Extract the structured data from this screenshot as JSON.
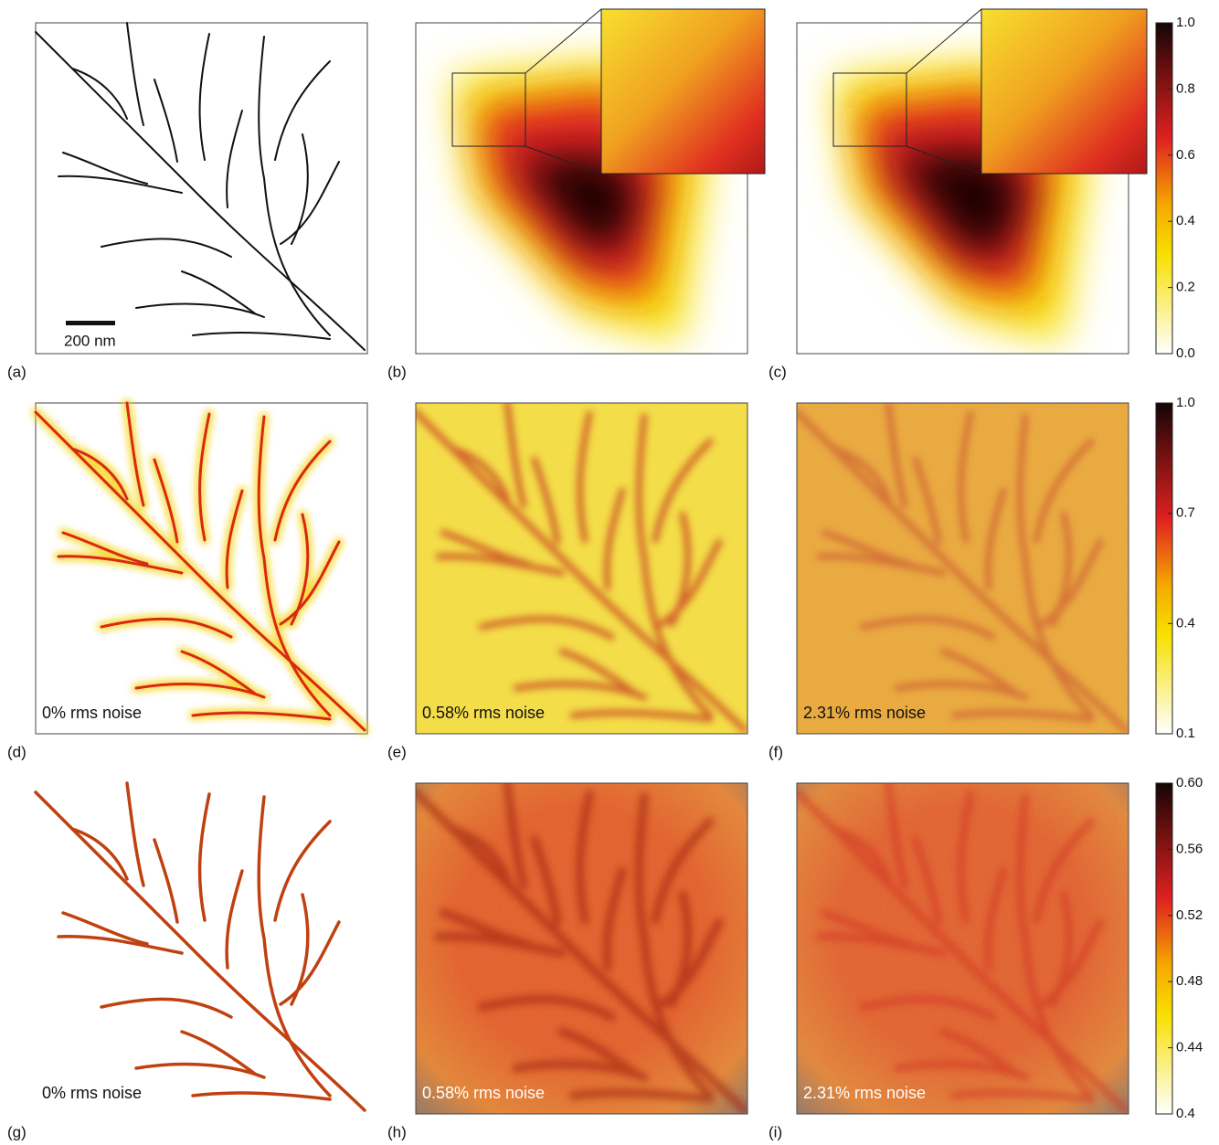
{
  "panels": [
    {
      "label": "(a)",
      "annotation": "200 nm"
    },
    {
      "label": "(b)"
    },
    {
      "label": "(c)"
    },
    {
      "label": "(d)",
      "annotation": "0% rms noise"
    },
    {
      "label": "(e)",
      "annotation": "0.58% rms noise"
    },
    {
      "label": "(f)",
      "annotation": "2.31% rms noise"
    },
    {
      "label": "(g)",
      "annotation": "0% rms noise"
    },
    {
      "label": "(h)",
      "annotation": "0.58% rms noise"
    },
    {
      "label": "(i)",
      "annotation": "2.31% rms noise"
    }
  ],
  "colorbars": [
    {
      "lim": [
        0,
        1
      ],
      "ticks": [
        {
          "value": 0,
          "label": "0.0"
        },
        0.2,
        0.4,
        0.6,
        0.8,
        {
          "value": 1,
          "label": "1.0"
        }
      ]
    },
    {
      "lim": [
        0.1,
        1
      ],
      "ticks": [
        0.1,
        0.4,
        0.7,
        {
          "value": 1,
          "label": "1.0"
        }
      ]
    },
    {
      "lim": [
        0.4,
        0.6
      ],
      "ticks": [
        0.4,
        0.44,
        0.48,
        0.52,
        0.56,
        {
          "value": 0.6,
          "label": "0.60"
        }
      ]
    }
  ]
}
